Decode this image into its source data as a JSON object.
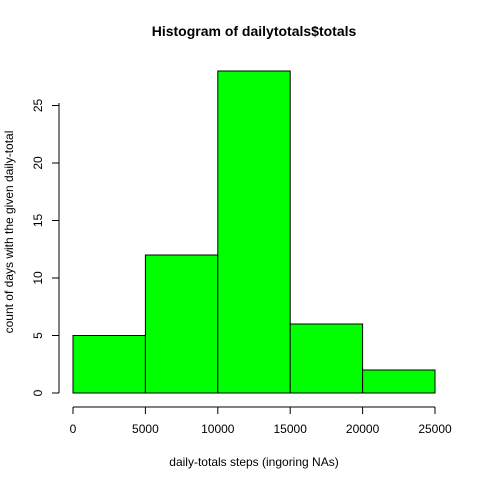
{
  "chart_data": {
    "type": "bar",
    "title": "Histogram of dailytotals$totals",
    "xlabel": "daily-totals steps (ingoring NAs)",
    "ylabel": "count of days with the given daily-total",
    "bins": [
      {
        "from": 0,
        "to": 5000,
        "count": 5
      },
      {
        "from": 5000,
        "to": 10000,
        "count": 12
      },
      {
        "from": 10000,
        "to": 15000,
        "count": 28
      },
      {
        "from": 15000,
        "to": 20000,
        "count": 6
      },
      {
        "from": 20000,
        "to": 25000,
        "count": 2
      }
    ],
    "xlim": [
      0,
      25000
    ],
    "ylim": [
      0,
      28
    ],
    "x_ticks": [
      "0",
      "5000",
      "10000",
      "15000",
      "20000",
      "25000"
    ],
    "y_ticks": [
      "0",
      "5",
      "10",
      "15",
      "20",
      "25"
    ],
    "bar_color": "#00ff00",
    "grid": false
  }
}
